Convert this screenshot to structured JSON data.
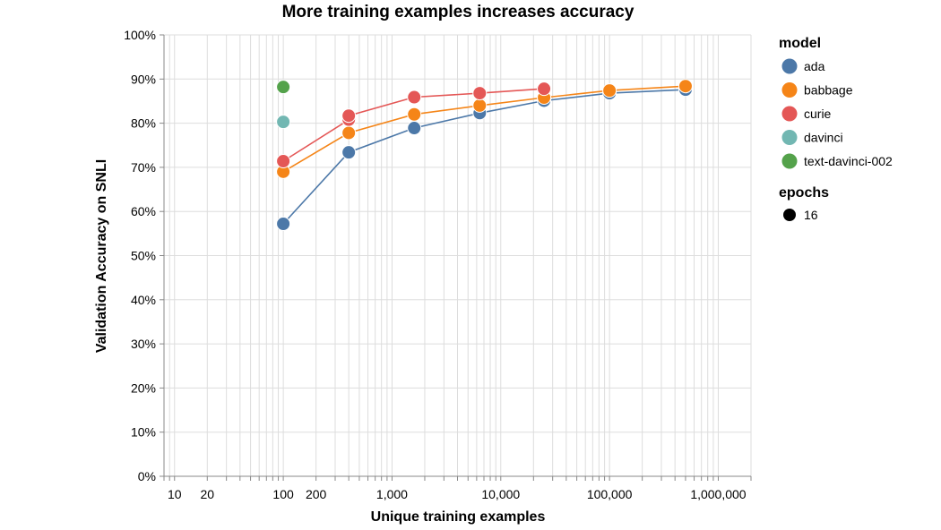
{
  "chart_data": {
    "type": "line",
    "title": "More training examples increases accuracy",
    "xlabel": "Unique training examples",
    "ylabel": "Validation Accuracy on SNLI",
    "xscale": "log",
    "xlim": [
      8,
      2000000
    ],
    "ylim": [
      0,
      100
    ],
    "grid": true,
    "x_tick_labels": [
      {
        "value": 10,
        "label": "10"
      },
      {
        "value": 20,
        "label": "20"
      },
      {
        "value": 100,
        "label": "100"
      },
      {
        "value": 200,
        "label": "200"
      },
      {
        "value": 1000,
        "label": "1,000"
      },
      {
        "value": 10000,
        "label": "10,000"
      },
      {
        "value": 100000,
        "label": "100,000"
      },
      {
        "value": 1000000,
        "label": "1,000,000"
      }
    ],
    "y_ticks": [
      0,
      10,
      20,
      30,
      40,
      50,
      60,
      70,
      80,
      90,
      100
    ],
    "y_tick_labels": [
      "0%",
      "10%",
      "20%",
      "30%",
      "40%",
      "50%",
      "60%",
      "70%",
      "80%",
      "90%",
      "100%"
    ],
    "series": [
      {
        "name": "ada",
        "color": "#4c78a8",
        "points": [
          {
            "x": 100,
            "y": 57.2
          },
          {
            "x": 400,
            "y": 73.4
          },
          {
            "x": 1600,
            "y": 78.9
          },
          {
            "x": 6400,
            "y": 82.3
          },
          {
            "x": 25000,
            "y": 85.1
          },
          {
            "x": 100000,
            "y": 86.8
          },
          {
            "x": 500000,
            "y": 87.6
          }
        ]
      },
      {
        "name": "babbage",
        "color": "#f58518",
        "points": [
          {
            "x": 100,
            "y": 69.0
          },
          {
            "x": 400,
            "y": 77.8
          },
          {
            "x": 1600,
            "y": 82.0
          },
          {
            "x": 6400,
            "y": 84.0
          },
          {
            "x": 25000,
            "y": 85.8
          },
          {
            "x": 100000,
            "y": 87.4
          },
          {
            "x": 500000,
            "y": 88.4
          }
        ]
      },
      {
        "name": "curie",
        "color": "#e45756",
        "points": [
          {
            "x": 100,
            "y": 71.4
          },
          {
            "x": 400,
            "y": 80.8
          },
          {
            "x": 400,
            "y": 81.7
          },
          {
            "x": 1600,
            "y": 85.9
          },
          {
            "x": 6400,
            "y": 86.8
          },
          {
            "x": 25000,
            "y": 87.8
          }
        ]
      },
      {
        "name": "davinci",
        "color": "#72b7b2",
        "points": [
          {
            "x": 100,
            "y": 80.3
          }
        ]
      },
      {
        "name": "text-davinci-002",
        "color": "#54a24b",
        "points": [
          {
            "x": 100,
            "y": 88.2
          }
        ]
      }
    ],
    "legend": {
      "placement": "right",
      "model_title": "model",
      "epochs_title": "epochs",
      "epochs_items": [
        "16"
      ]
    }
  }
}
